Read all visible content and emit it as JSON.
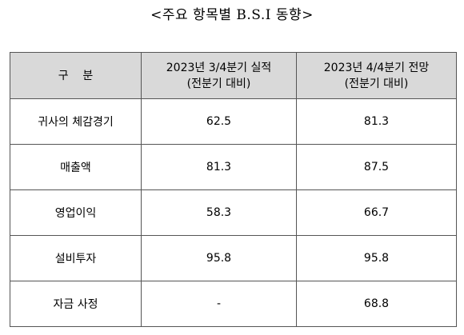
{
  "header": {
    "title": "<주요 항목별 B.S.I 동향>"
  },
  "table": {
    "columns": [
      [
        "구    분"
      ],
      [
        "2023년 3/4분기 실적",
        "(전분기 대비)"
      ],
      [
        "2023년 4/4분기 전망",
        "(전분기 대비)"
      ]
    ],
    "rows": [
      [
        "귀사의 체감경기",
        "62.5",
        "81.3"
      ],
      [
        "매출액",
        "81.3",
        "87.5"
      ],
      [
        "영업이익",
        "58.3",
        "66.7"
      ],
      [
        "설비투자",
        "95.8",
        "95.8"
      ],
      [
        "자금 사정",
        "-",
        "68.8"
      ]
    ]
  }
}
